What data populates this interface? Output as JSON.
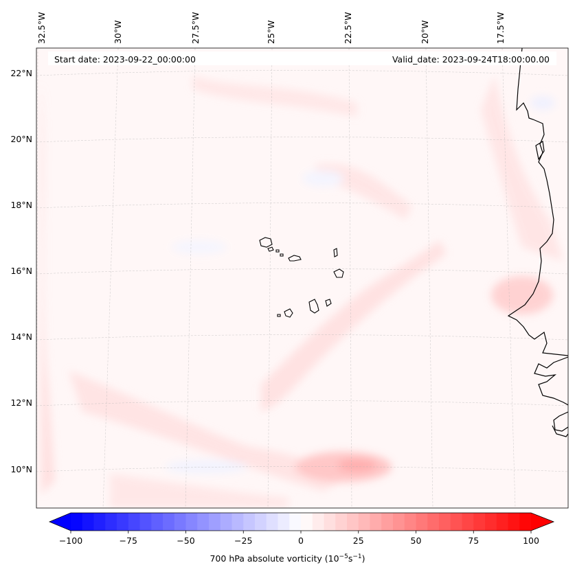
{
  "header": {
    "start_date": "Start date: 2023-09-22_00:00:00",
    "valid_date": "Valid_date: 2023-09-24T18:00:00.00"
  },
  "lon_labels": [
    "32.5°W",
    "30°W",
    "27.5°W",
    "25°W",
    "22.5°W",
    "20°W",
    "17.5°W"
  ],
  "lat_labels": [
    "22°N",
    "20°N",
    "18°N",
    "16°N",
    "14°N",
    "12°N",
    "10°N"
  ],
  "colorbar": {
    "ticks": [
      "−100",
      "−75",
      "−50",
      "−25",
      "0",
      "25",
      "50",
      "75",
      "100"
    ],
    "min": -100,
    "max": 100,
    "label_prefix": "700 hPa absolute vorticity (10",
    "label_exp1": "−5",
    "label_mid": "s",
    "label_exp2": "−1",
    "label_suffix": ")",
    "low_color": "#0000ff",
    "high_color": "#ff0000"
  }
}
